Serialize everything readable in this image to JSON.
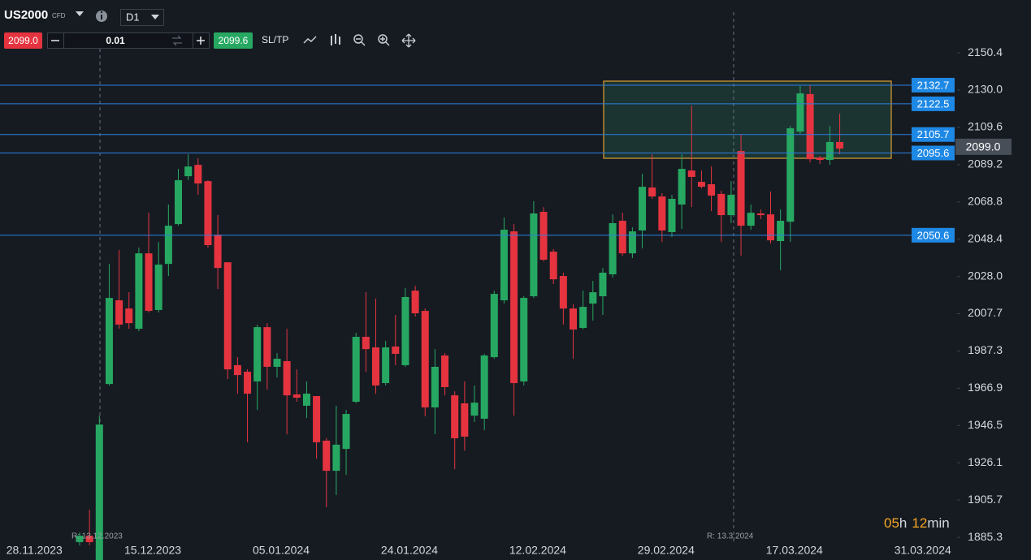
{
  "toolbar": {
    "symbol": "US2000",
    "symbol_type": "CFD",
    "timeframe": "D1",
    "sell_price": "2099.0",
    "volume": "0.01",
    "buy_price": "2099.6",
    "sl_tp": "SL/TP"
  },
  "timer": {
    "hours": "05",
    "hours_unit": "h",
    "minutes": "12",
    "minutes_unit": "min"
  },
  "chart_data": {
    "type": "candlestick",
    "up_color": "#27a862",
    "down_color": "#e5343f",
    "line_color": "#2f7fe0",
    "categories": [
      "28.11.2023",
      null,
      null,
      null,
      null,
      null,
      null,
      null,
      null,
      null,
      null,
      null,
      "15.12.2023",
      null,
      null,
      null,
      null,
      null,
      null,
      null,
      null,
      null,
      null,
      null,
      null,
      "05.01.2024",
      null,
      null,
      null,
      null,
      null,
      null,
      null,
      null,
      null,
      null,
      null,
      null,
      "24.01.2024",
      null,
      null,
      null,
      null,
      null,
      null,
      null,
      null,
      null,
      null,
      null,
      null,
      "12.02.2024",
      null,
      null,
      null,
      null,
      null,
      null,
      null,
      null,
      null,
      null,
      null,
      null,
      "29.02.2024",
      null,
      null,
      null,
      null,
      null,
      null,
      null,
      null,
      null,
      null,
      null,
      null,
      "17.03.2024",
      null,
      null,
      null,
      null,
      null,
      null,
      null,
      null,
      null,
      null,
      null,
      null,
      "31.03.2024"
    ],
    "open": [
      null,
      null,
      null,
      null,
      null,
      1882.7,
      1886.2,
      1872,
      1969.2,
      2015.0,
      2010.5,
      1999.4,
      2040.7,
      2009.7,
      2034.9,
      2056.7,
      2082.9,
      2089.1,
      2080.2,
      2050.9,
      2035.8,
      1979.5,
      1975.9,
      1970.6,
      2000.3,
      1978.6,
      1981.7,
      1963.5,
      1957.3,
      1962.6,
      1938.2,
      1921.7,
      1933.7,
      1959.5,
      1995.0,
      1989.2,
      1969.7,
      1989.7,
      1979.5,
      2020.3,
      2009.2,
      1956.4,
      1984.8,
      1963.0,
      1958.6,
      1951.9,
      1950.2,
      1983.9,
      2015.0,
      2052.7,
      1970.6,
      2017.2,
      2063.4,
      2041.6,
      2028.3,
      2010.5,
      1999.9,
      2013.2,
      2017.2,
      2029.2,
      2058.5,
      2040.7,
      2053.2,
      2076.7,
      2071.8,
      2052.3,
      2067.4,
      2086.0,
      2079.8,
      2078.5,
      2073.2,
      2061.6,
      2096.7,
      2055.8,
      2062.5,
      2062.0,
      2047.4,
      2058.0,
      2107.3,
      2127.8,
      2093.1,
      2091.8,
      2101.6,
      null,
      null,
      null,
      null,
      null,
      null,
      null,
      null
    ],
    "high": [
      null,
      null,
      null,
      null,
      null,
      1888.0,
      1900.4,
      1951.9,
      2034.9,
      2042.5,
      2019.4,
      2043.8,
      2062.9,
      2046.9,
      2067.4,
      2086.9,
      2094.9,
      2092.7,
      2080.7,
      2061.6,
      2035.8,
      1983.9,
      1977.2,
      2001.7,
      2002.5,
      1986.1,
      1999.4,
      1977.2,
      1970.6,
      1962.6,
      1939.5,
      1957.3,
      1955.0,
      1997.2,
      2019.4,
      2015.9,
      1992.8,
      2007.0,
      2021.6,
      2023.0,
      2010.5,
      1988.3,
      1986.1,
      1965.2,
      1970.6,
      1968.4,
      1985.7,
      2020.3,
      2060.3,
      2056.7,
      2017.2,
      2069.2,
      2066.0,
      2043.0,
      2030.1,
      2012.8,
      2020.3,
      2025.6,
      2032.7,
      2062.0,
      2062.9,
      2054.9,
      2084.2,
      2094.9,
      2073.6,
      2072.7,
      2094.9,
      2121.5,
      2086.0,
      2088.2,
      2074.9,
      2080.2,
      2106.0,
      2067.4,
      2064.7,
      2074.5,
      2064.7,
      2110.4,
      2132.2,
      2132.6,
      2094.0,
      2110.4,
      2117.1,
      null,
      null,
      null,
      null,
      null,
      null,
      null,
      null
    ],
    "low": [
      null,
      null,
      null,
      null,
      null,
      1880.9,
      1880.9,
      1870,
      1968.4,
      1999.4,
      1999.4,
      1998.1,
      2008.3,
      2008.3,
      2028.3,
      2055.8,
      2080.7,
      2072.7,
      2043.8,
      2021.2,
      1971.9,
      1963.9,
      1937.3,
      1955.0,
      1966.1,
      1972.8,
      1941.7,
      1959.5,
      1950.6,
      1928.4,
      1901.8,
      1908.4,
      1919.5,
      1958.6,
      1975.9,
      1963.9,
      1968.4,
      1979.5,
      1978.6,
      2006.1,
      1951.5,
      1941.7,
      1963.0,
      1922.6,
      1932.8,
      1948.4,
      1943.9,
      1983.0,
      2013.2,
      1951.9,
      1968.4,
      2016.3,
      2036.3,
      2023.9,
      2001.7,
      1983.0,
      1999.0,
      2003.9,
      2007.0,
      2027.4,
      2039.4,
      2038.1,
      2043.4,
      2070.5,
      2046.9,
      2049.6,
      2054.1,
      2066.0,
      2076.2,
      2063.8,
      2046.9,
      2057.2,
      2039.4,
      2053.6,
      2059.4,
      2046.1,
      2031.4,
      2046.9,
      2106.0,
      2090.5,
      2089.6,
      2089.1,
      2094.9,
      null,
      null,
      null,
      null,
      null,
      null,
      null,
      null
    ],
    "close": [
      null,
      null,
      null,
      null,
      null,
      1886.2,
      1882.7,
      1947.0,
      2016.3,
      2001.7,
      2002.5,
      2040.7,
      2009.2,
      2034.5,
      2055.8,
      2080.7,
      2088.2,
      2078.9,
      2045.2,
      2032.7,
      1977.2,
      1974.1,
      1963.9,
      2000.3,
      1978.6,
      1983.0,
      1963.0,
      1961.7,
      1963.9,
      1937.3,
      1921.7,
      1936.0,
      1952.8,
      1995.0,
      1988.3,
      1968.4,
      1989.2,
      1985.7,
      2016.8,
      2007.9,
      1956.4,
      1978.6,
      1967.5,
      1939.5,
      1940.4,
      1959.0,
      1984.8,
      2018.5,
      2053.6,
      1969.7,
      2016.3,
      2062.5,
      2037.2,
      2026.5,
      2010.5,
      1999.0,
      2011.4,
      2019.4,
      2030.1,
      2057.2,
      2040.7,
      2052.7,
      2077.1,
      2071.8,
      2053.2,
      2070.5,
      2086.9,
      2082.5,
      2077.1,
      2072.3,
      2061.6,
      2072.7,
      2055.8,
      2062.9,
      2061.6,
      2047.8,
      2058.5,
      2109.1,
      2128.2,
      2092.2,
      2091.8,
      2101.6,
      2098.0,
      null,
      null,
      null,
      null,
      null,
      null,
      null,
      null
    ],
    "ylim": [
      1872.9,
      2179.3
    ],
    "yticks": [
      2150.4,
      {
        "value": 2130,
        "label": "2130.0"
      },
      2109.6,
      2089.2,
      2068.8,
      2048.4,
      {
        "value": 2028,
        "label": "2028.0"
      },
      2007.7,
      1987.3,
      1966.9,
      1946.5,
      1926.1,
      1905.7,
      1885.3
    ],
    "price_lines": [
      2132.7,
      2122.5,
      2105.7,
      2095.6,
      2050.6
    ],
    "current_price": {
      "value": 2099,
      "label": "2099.0"
    },
    "annotations": [
      "R: 13.12.2023",
      "R: 13.3.2024"
    ]
  }
}
